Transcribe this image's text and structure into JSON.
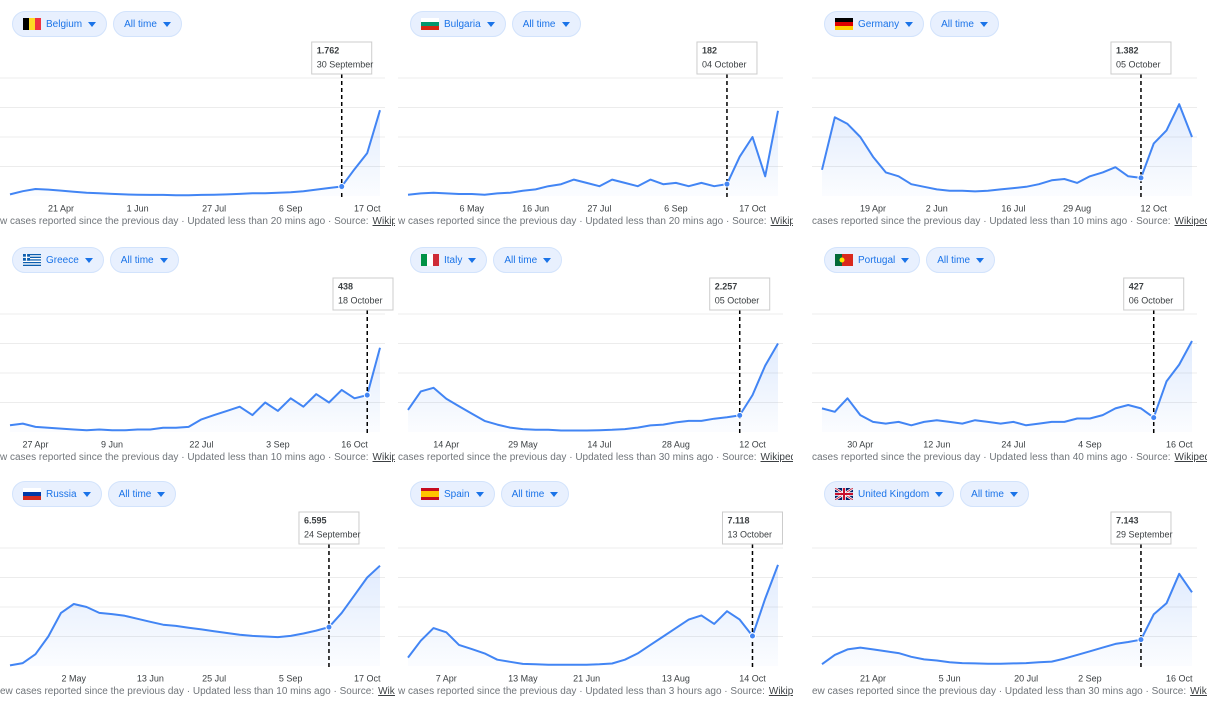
{
  "chart_data": [
    {
      "type": "line",
      "country": "Belgium",
      "range": "All time",
      "color": "#4285f4",
      "ylim": [
        0,
        22000
      ],
      "grid": true,
      "categories": [
        null,
        null,
        null,
        null,
        "21 Apr",
        null,
        null,
        null,
        null,
        null,
        "1 Jun",
        null,
        null,
        null,
        null,
        null,
        "27 Jul",
        null,
        null,
        null,
        null,
        null,
        "6 Sep",
        null,
        null,
        null,
        null,
        null,
        "17 Oct",
        null
      ],
      "values": [
        300,
        900,
        1300,
        1200,
        1000,
        800,
        600,
        500,
        400,
        300,
        250,
        200,
        200,
        150,
        150,
        200,
        250,
        300,
        400,
        500,
        500,
        600,
        700,
        900,
        1200,
        1500,
        1762,
        5000,
        8000,
        16000
      ],
      "tooltip": {
        "value": 1762,
        "label": "1.762",
        "date": "30 September"
      },
      "footer": "w cases reported since the previous day · Updated less than 20 mins ago · Source:",
      "source": "Wikipedia"
    },
    {
      "type": "line",
      "country": "Bulgaria",
      "range": "All time",
      "color": "#4285f4",
      "ylim": [
        0,
        1800
      ],
      "grid": true,
      "categories": [
        null,
        null,
        null,
        null,
        null,
        "6 May",
        null,
        null,
        null,
        null,
        "16 Jun",
        null,
        null,
        null,
        null,
        "27 Jul",
        null,
        null,
        null,
        null,
        null,
        "6 Sep",
        null,
        null,
        null,
        null,
        null,
        "17 Oct",
        null,
        null
      ],
      "values": [
        20,
        40,
        50,
        40,
        30,
        30,
        20,
        40,
        50,
        80,
        100,
        150,
        180,
        250,
        200,
        150,
        250,
        200,
        150,
        250,
        180,
        200,
        150,
        200,
        150,
        182,
        600,
        900,
        300,
        1300
      ],
      "tooltip": {
        "value": 182,
        "label": "182",
        "date": "04 October"
      },
      "footer": "w cases reported since the previous day · Updated less than 20 mins ago · Source:",
      "source": "Wikipedia"
    },
    {
      "type": "line",
      "country": "Germany",
      "range": "All time",
      "color": "#4285f4",
      "ylim": [
        0,
        9000
      ],
      "grid": true,
      "categories": [
        null,
        null,
        null,
        null,
        "19 Apr",
        null,
        null,
        null,
        null,
        "2 Jun",
        null,
        null,
        null,
        null,
        null,
        "16 Jul",
        null,
        null,
        null,
        null,
        "29 Aug",
        null,
        null,
        null,
        null,
        null,
        "12 Oct",
        null,
        null,
        null
      ],
      "values": [
        2000,
        6000,
        5500,
        4500,
        3000,
        1800,
        1500,
        900,
        700,
        500,
        400,
        400,
        350,
        400,
        500,
        600,
        700,
        900,
        1200,
        1300,
        1000,
        1500,
        1800,
        2200,
        1500,
        1382,
        4000,
        5000,
        7000,
        4500
      ],
      "tooltip": {
        "value": 1382,
        "label": "1.382",
        "date": "05 October"
      },
      "footer": "cases reported since the previous day · Updated less than 10 mins ago · Source:",
      "source": "Wikipedia"
    },
    {
      "type": "line",
      "country": "Greece",
      "range": "All time",
      "color": "#4285f4",
      "ylim": [
        0,
        1400
      ],
      "grid": true,
      "categories": [
        null,
        null,
        "27 Apr",
        null,
        null,
        null,
        null,
        null,
        "9 Jun",
        null,
        null,
        null,
        null,
        null,
        null,
        "22 Jul",
        null,
        null,
        null,
        null,
        null,
        "3 Sep",
        null,
        null,
        null,
        null,
        null,
        "16 Oct",
        null,
        null
      ],
      "values": [
        80,
        100,
        60,
        50,
        40,
        30,
        20,
        30,
        20,
        20,
        30,
        30,
        50,
        50,
        60,
        150,
        200,
        250,
        300,
        200,
        350,
        250,
        400,
        300,
        450,
        350,
        500,
        400,
        438,
        1000
      ],
      "tooltip": {
        "value": 438,
        "label": "438",
        "date": "18 October"
      },
      "footer": "w cases reported since the previous day · Updated less than 10 mins ago · Source:",
      "source": "Wikipedia"
    },
    {
      "type": "line",
      "country": "Italy",
      "range": "All time",
      "color": "#4285f4",
      "ylim": [
        0,
        16000
      ],
      "grid": true,
      "categories": [
        null,
        null,
        null,
        "14 Apr",
        null,
        null,
        null,
        null,
        null,
        "29 May",
        null,
        null,
        null,
        null,
        null,
        "14 Jul",
        null,
        null,
        null,
        null,
        null,
        "28 Aug",
        null,
        null,
        null,
        null,
        null,
        "12 Oct",
        null,
        null
      ],
      "values": [
        3000,
        5500,
        6000,
        4500,
        3500,
        2500,
        1500,
        1000,
        600,
        400,
        300,
        300,
        200,
        200,
        200,
        250,
        300,
        400,
        600,
        900,
        1000,
        1300,
        1500,
        1500,
        1800,
        2000,
        2257,
        5000,
        9000,
        12000
      ],
      "tooltip": {
        "value": 2257,
        "label": "2.257",
        "date": "05 October"
      },
      "footer": "cases reported since the previous day · Updated less than 30 mins ago · Source:",
      "source": "Wikipedia"
    },
    {
      "type": "line",
      "country": "Portugal",
      "range": "All time",
      "color": "#4285f4",
      "ylim": [
        0,
        3500
      ],
      "grid": true,
      "categories": [
        null,
        null,
        null,
        "30 Apr",
        null,
        null,
        null,
        null,
        null,
        "12 Jun",
        null,
        null,
        null,
        null,
        null,
        "24 Jul",
        null,
        null,
        null,
        null,
        null,
        "4 Sep",
        null,
        null,
        null,
        null,
        null,
        null,
        "16 Oct",
        null
      ],
      "values": [
        700,
        600,
        1000,
        500,
        300,
        250,
        300,
        200,
        300,
        350,
        300,
        250,
        350,
        300,
        250,
        300,
        200,
        250,
        300,
        300,
        400,
        400,
        500,
        700,
        800,
        700,
        427,
        1500,
        2000,
        2700
      ],
      "tooltip": {
        "value": 427,
        "label": "427",
        "date": "06 October"
      },
      "footer": "cases reported since the previous day · Updated less than 40 mins ago · Source:",
      "source": "Wikipedia"
    },
    {
      "type": "line",
      "country": "Russia",
      "range": "All time",
      "color": "#4285f4",
      "ylim": [
        0,
        20000
      ],
      "grid": true,
      "categories": [
        null,
        null,
        null,
        null,
        null,
        "2 May",
        null,
        null,
        null,
        null,
        null,
        "13 Jun",
        null,
        null,
        null,
        null,
        "25 Jul",
        null,
        null,
        null,
        null,
        null,
        "5 Sep",
        null,
        null,
        null,
        null,
        null,
        "17 Oct",
        null
      ],
      "values": [
        100,
        500,
        2000,
        5000,
        9000,
        10500,
        10000,
        9000,
        8800,
        8500,
        8000,
        7500,
        7000,
        6800,
        6500,
        6200,
        5900,
        5600,
        5300,
        5100,
        5000,
        4900,
        5100,
        5500,
        6000,
        6595,
        9000,
        12000,
        15000,
        17000
      ],
      "tooltip": {
        "value": 6595,
        "label": "6.595",
        "date": "24 September"
      },
      "footer": "ew cases reported since the previous day · Updated less than 10 mins ago · Source:",
      "source": "Wikipedia"
    },
    {
      "type": "line",
      "country": "Spain",
      "range": "All time",
      "color": "#4285f4",
      "ylim": [
        0,
        28000
      ],
      "grid": true,
      "categories": [
        null,
        null,
        null,
        "7 Apr",
        null,
        null,
        null,
        null,
        null,
        "13 May",
        null,
        null,
        null,
        null,
        "21 Jun",
        null,
        null,
        null,
        null,
        null,
        null,
        "13 Aug",
        null,
        null,
        null,
        null,
        null,
        "14 Oct",
        null,
        null
      ],
      "values": [
        2000,
        6000,
        9000,
        8000,
        5000,
        4000,
        3000,
        1500,
        1000,
        500,
        400,
        300,
        300,
        300,
        300,
        400,
        600,
        1500,
        3000,
        5000,
        7000,
        9000,
        11000,
        12000,
        10000,
        13000,
        11000,
        7118,
        16000,
        24000
      ],
      "tooltip": {
        "value": 7118,
        "label": "7.118",
        "date": "13 October"
      },
      "footer": "w cases reported since the previous day · Updated less than 3 hours ago · Source:",
      "source": "Wikipedia"
    },
    {
      "type": "line",
      "country": "United Kingdom",
      "range": "All time",
      "color": "#4285f4",
      "ylim": [
        0,
        32000
      ],
      "grid": true,
      "categories": [
        null,
        null,
        null,
        null,
        "21 Apr",
        null,
        null,
        null,
        null,
        null,
        "5 Jun",
        null,
        null,
        null,
        null,
        null,
        "20 Jul",
        null,
        null,
        null,
        null,
        "2 Sep",
        null,
        null,
        null,
        null,
        null,
        null,
        "16 Oct",
        null
      ],
      "values": [
        500,
        3000,
        4500,
        5000,
        4500,
        4000,
        3500,
        2500,
        1800,
        1500,
        1000,
        800,
        700,
        600,
        600,
        700,
        800,
        1000,
        1200,
        2000,
        3000,
        4000,
        5000,
        6000,
        6500,
        7143,
        14000,
        17000,
        25000,
        20000
      ],
      "tooltip": {
        "value": 7143,
        "label": "7.143",
        "date": "29 September"
      },
      "footer": "ew cases reported since the previous day · Updated less than 30 mins ago · Source:",
      "source": "Wikipedia"
    }
  ]
}
